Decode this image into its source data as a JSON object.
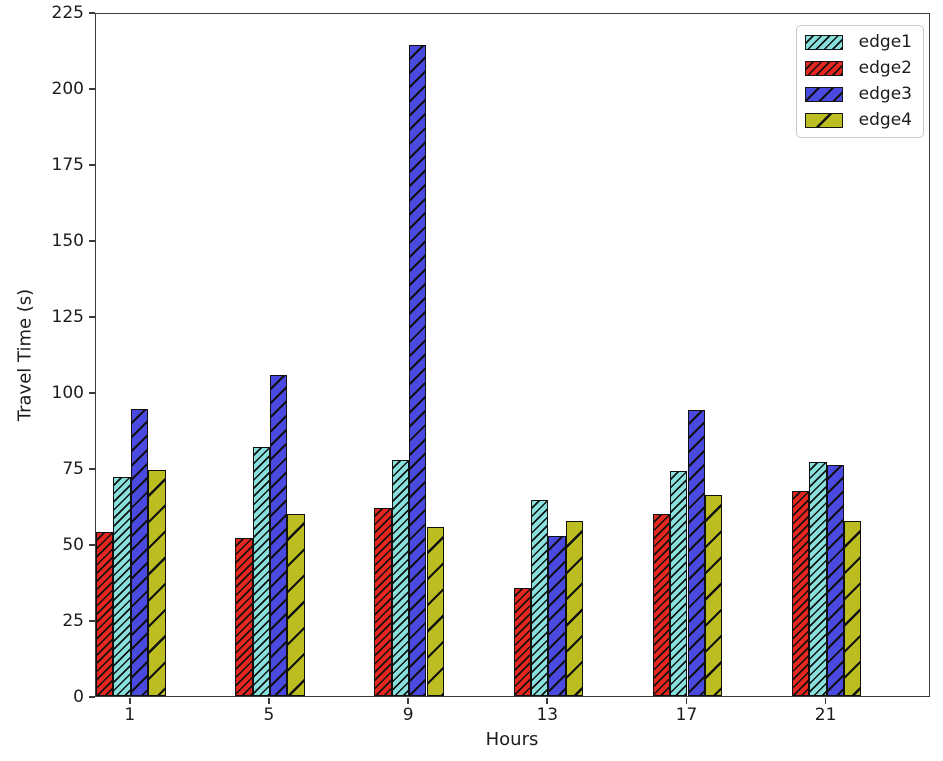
{
  "chart_data": {
    "type": "bar",
    "title": "",
    "xlabel": "Hours",
    "ylabel": "Travel Time (s)",
    "xlim": [
      0,
      24
    ],
    "ylim": [
      0,
      225
    ],
    "x_ticks": [
      1,
      5,
      9,
      13,
      17,
      21
    ],
    "y_ticks": [
      0,
      25,
      50,
      75,
      100,
      125,
      150,
      175,
      200,
      225
    ],
    "grid": false,
    "legend_position": "upper-right",
    "bar_width_hours": 0.5,
    "group_draw_order": [
      "edge2",
      "edge1",
      "edge3",
      "edge4"
    ],
    "categories": [
      1,
      5,
      9,
      13,
      17,
      21
    ],
    "series": [
      {
        "name": "edge1",
        "color": "#87e0dc",
        "hatch": "dense",
        "values": [
          72,
          82,
          77.5,
          64.5,
          74,
          77
        ]
      },
      {
        "name": "edge2",
        "color": "#e52720",
        "hatch": "dense",
        "values": [
          54,
          52,
          62,
          35.5,
          60,
          67.5
        ]
      },
      {
        "name": "edge3",
        "color": "#4a4ae0",
        "hatch": "medium",
        "values": [
          94.5,
          105.5,
          214,
          52.5,
          94,
          76
        ]
      },
      {
        "name": "edge4",
        "color": "#bcbd20",
        "hatch": "sparse",
        "values": [
          74.5,
          60,
          55.5,
          57.5,
          66,
          57.5
        ]
      }
    ],
    "hatch_color": "#111111",
    "axis_color": "#3c3c3c",
    "text_color": "#1c1c1c"
  }
}
